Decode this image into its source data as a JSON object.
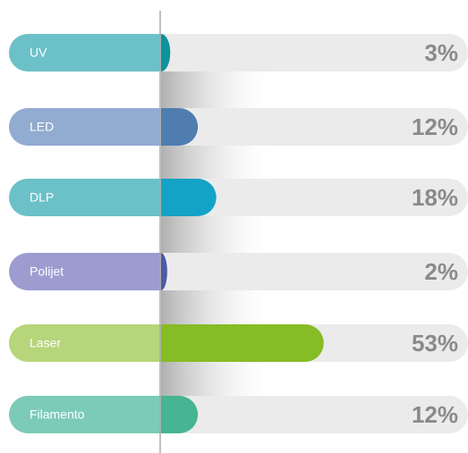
{
  "chart_data": {
    "type": "bar",
    "orientation": "horizontal",
    "categories": [
      "UV",
      "LED",
      "DLP",
      "Polijet",
      "Laser",
      "Filamento"
    ],
    "values": [
      3,
      12,
      18,
      2,
      53,
      12
    ],
    "value_labels": [
      "3%",
      "12%",
      "18%",
      "2%",
      "53%",
      "12%"
    ],
    "colors": [
      "#0e929c",
      "#4f7db0",
      "#13a3c6",
      "#4e5aa6",
      "#86bc25",
      "#45b592"
    ],
    "label_colors": [
      "#6cc0c8",
      "#92abd0",
      "#6cc0c8",
      "#9c9cd0",
      "#b7d57a",
      "#7ccbb8"
    ],
    "xlim": [
      0,
      100
    ]
  }
}
